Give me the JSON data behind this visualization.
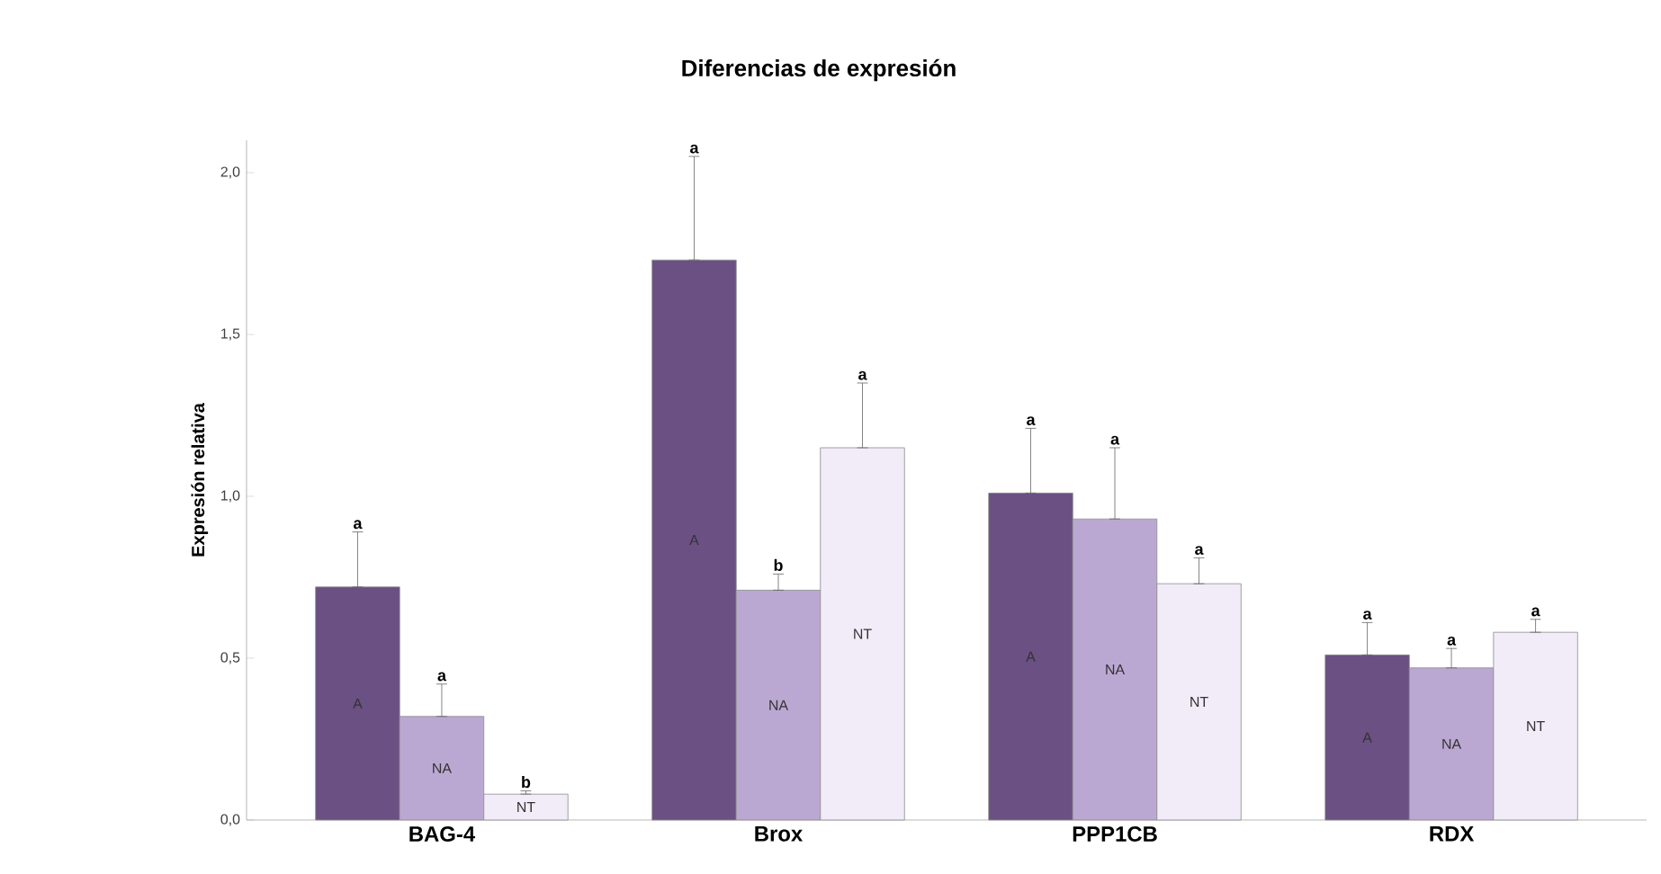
{
  "chart_data": {
    "type": "bar",
    "title": "Diferencias de expresión",
    "ylabel": "Expresión relativa",
    "categories": [
      "BAG-4",
      "Brox",
      "PPP1CB",
      "RDX"
    ],
    "series": [
      {
        "name": "A",
        "color": "#6a5083",
        "values": [
          0.72,
          1.73,
          1.01,
          0.51
        ],
        "errors": [
          [
            0.72,
            0.89
          ],
          [
            1.73,
            2.05
          ],
          [
            1.01,
            1.21
          ],
          [
            0.51,
            0.61
          ]
        ]
      },
      {
        "name": "NA",
        "color": "#bba8d2",
        "values": [
          0.32,
          0.71,
          0.93,
          0.47
        ],
        "errors": [
          [
            0.32,
            0.42
          ],
          [
            0.71,
            0.76
          ],
          [
            0.93,
            1.15
          ],
          [
            0.47,
            0.53
          ]
        ]
      },
      {
        "name": "NT",
        "color": "#f1ecf7",
        "values": [
          0.08,
          1.15,
          0.73,
          0.58
        ],
        "errors": [
          [
            0.08,
            0.09
          ],
          [
            1.15,
            1.35
          ],
          [
            0.73,
            0.81
          ],
          [
            0.58,
            0.62
          ]
        ]
      }
    ],
    "ylim": [
      0,
      2.1
    ],
    "yticks": [
      {
        "value": 0,
        "label": "0,0"
      },
      {
        "value": 0.5,
        "label": "0,5"
      },
      {
        "value": 1,
        "label": "1,0"
      },
      {
        "value": 1.5,
        "label": "1,5"
      },
      {
        "value": 2,
        "label": "2,0"
      }
    ],
    "grid": false,
    "annotations": [
      "a",
      "a",
      "b",
      "a",
      "b",
      "a",
      "a",
      "a",
      "a",
      "a",
      "a",
      "a"
    ]
  }
}
